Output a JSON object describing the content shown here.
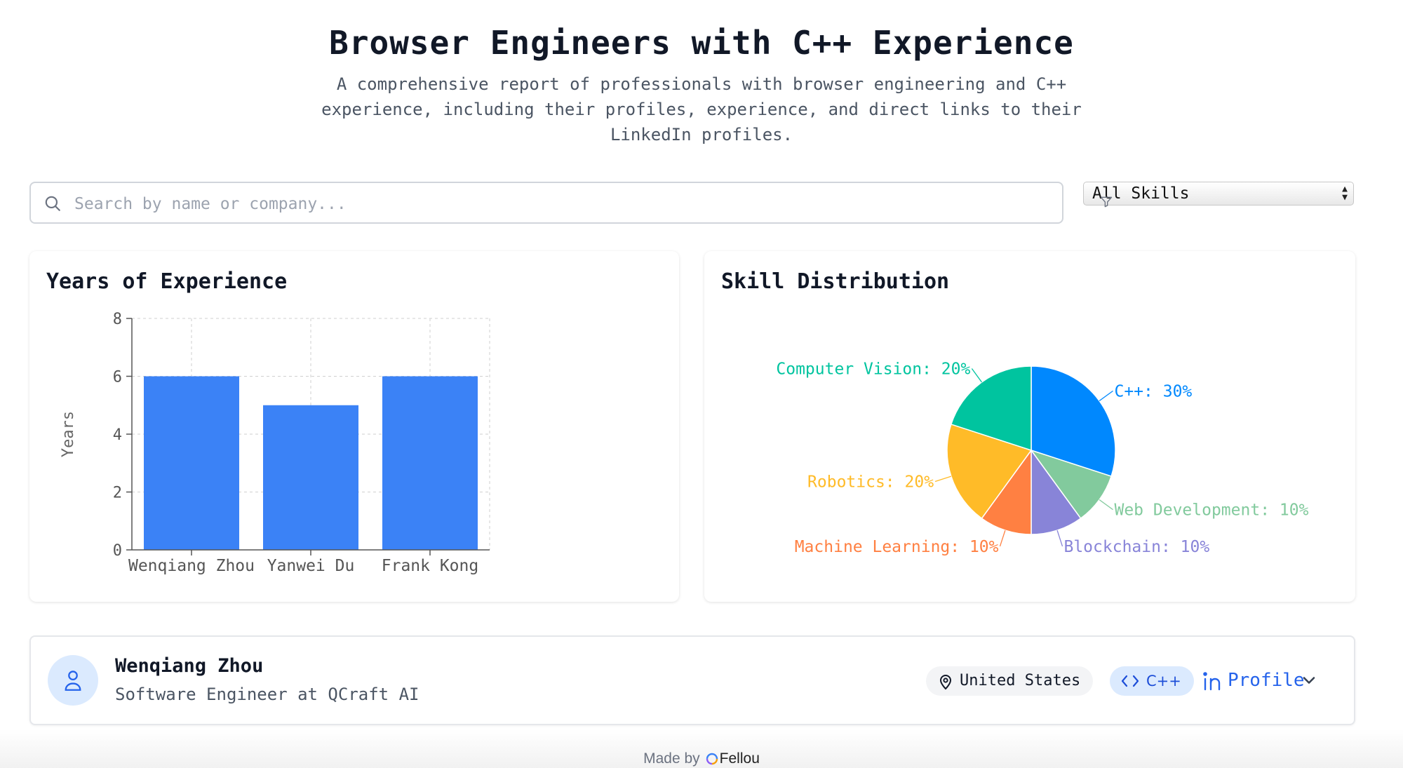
{
  "header": {
    "title": "Browser Engineers with C++ Experience",
    "description": "A comprehensive report of professionals with browser engineering and C++ experience, including their profiles, experience, and direct links to their LinkedIn profiles."
  },
  "search": {
    "placeholder": "Search by name or company...",
    "value": ""
  },
  "skill_filter": {
    "selected": "All Skills"
  },
  "experience_card": {
    "title": "Years of Experience"
  },
  "skill_card": {
    "title": "Skill Distribution"
  },
  "chart_data": [
    {
      "type": "bar",
      "title": "Years of Experience",
      "categories": [
        "Wenqiang Zhou",
        "Yanwei Du",
        "Frank Kong"
      ],
      "values": [
        6,
        5,
        6
      ],
      "xlabel": "",
      "ylabel": "Years",
      "ylim": [
        0,
        8
      ],
      "yticks": [
        0,
        2,
        4,
        6,
        8
      ],
      "grid": true,
      "color": "#3b82f6"
    },
    {
      "type": "pie",
      "title": "Skill Distribution",
      "slices": [
        {
          "label": "C++",
          "value": 30,
          "color": "#0088fe"
        },
        {
          "label": "Web Development",
          "value": 10,
          "color": "#82ca9d"
        },
        {
          "label": "Blockchain",
          "value": 10,
          "color": "#8884d8"
        },
        {
          "label": "Machine Learning",
          "value": 10,
          "color": "#ff8042"
        },
        {
          "label": "Robotics",
          "value": 20,
          "color": "#ffbb28"
        },
        {
          "label": "Computer Vision",
          "value": 20,
          "color": "#00c49f"
        }
      ]
    }
  ],
  "people": [
    {
      "name": "Wenqiang Zhou",
      "role": "Software Engineer at QCraft AI",
      "location": "United States",
      "skill": "C++",
      "profile_label": "Profile"
    }
  ],
  "footer": {
    "made_by": "Made by",
    "brand": "Fellou"
  },
  "colors": {
    "accent": "#2563eb",
    "bar": "#3b82f6"
  }
}
